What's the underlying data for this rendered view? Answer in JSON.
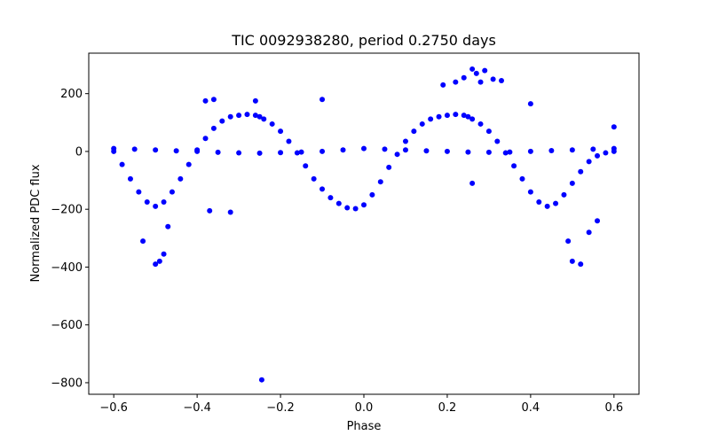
{
  "chart_data": {
    "type": "scatter",
    "title": "TIC 0092938280, period 0.2750 days",
    "xlabel": "Phase",
    "ylabel": "Normalized PDC flux",
    "xlim": [
      -0.66,
      0.66
    ],
    "ylim": [
      -840,
      340
    ],
    "x_ticks": [
      -0.6,
      -0.4,
      -0.2,
      0.0,
      0.2,
      0.4,
      0.6
    ],
    "x_tick_labels": [
      "−0.6",
      "−0.4",
      "−0.2",
      "0.0",
      "0.2",
      "0.4",
      "0.6"
    ],
    "y_ticks": [
      200,
      0,
      -200,
      -400,
      -600,
      -800
    ],
    "y_tick_labels": [
      "200",
      "0",
      "−200",
      "−400",
      "−600",
      "−800"
    ],
    "grid": false,
    "legend": "none",
    "marker_color": "#0000ff",
    "series": [
      {
        "x": [
          -0.6,
          -0.58,
          -0.56,
          -0.54,
          -0.52,
          -0.5,
          -0.48,
          -0.46,
          -0.44,
          -0.42,
          -0.4,
          -0.38,
          -0.36,
          -0.34,
          -0.32,
          -0.3,
          -0.28,
          -0.26,
          -0.25,
          -0.24,
          -0.22,
          -0.2,
          -0.18,
          -0.16,
          -0.14,
          -0.12,
          -0.1,
          -0.08,
          -0.06,
          -0.04,
          -0.02,
          0.0,
          0.02,
          0.04,
          0.06,
          0.08,
          0.1,
          0.12,
          0.14,
          0.16,
          0.18,
          0.2,
          0.22,
          0.24,
          0.25,
          0.26,
          0.28,
          0.3,
          0.32,
          0.34,
          0.36,
          0.38,
          0.4,
          0.42,
          0.44,
          0.46,
          0.48,
          0.5,
          0.52,
          0.54,
          0.56,
          0.58,
          0.6
        ],
        "y": [
          0,
          -45,
          -95,
          -140,
          -175,
          -190,
          -175,
          -140,
          -95,
          -45,
          5,
          45,
          80,
          105,
          120,
          125,
          128,
          125,
          120,
          112,
          95,
          70,
          35,
          -5,
          -50,
          -95,
          -130,
          -160,
          -180,
          -195,
          -198,
          -185,
          -150,
          -105,
          -55,
          -10,
          35,
          70,
          95,
          112,
          120,
          125,
          128,
          125,
          120,
          112,
          95,
          70,
          35,
          -5,
          -50,
          -95,
          -140,
          -175,
          -190,
          -180,
          -150,
          -110,
          -70,
          -35,
          -15,
          -5,
          0
        ]
      },
      {
        "x": [
          -0.6,
          -0.55,
          -0.5,
          -0.45,
          -0.4,
          -0.35,
          -0.3,
          -0.25,
          -0.2,
          -0.15,
          -0.1,
          -0.05,
          0.0,
          0.05,
          0.1,
          0.15,
          0.2,
          0.25,
          0.3,
          0.35,
          0.4,
          0.45,
          0.5,
          0.55,
          0.6
        ],
        "y": [
          10,
          8,
          5,
          2,
          0,
          -3,
          -5,
          -6,
          -4,
          -2,
          0,
          5,
          10,
          8,
          5,
          2,
          0,
          -2,
          -3,
          -2,
          0,
          3,
          5,
          8,
          10
        ]
      },
      {
        "x": [
          -0.5,
          -0.49,
          -0.48,
          -0.47,
          -0.53,
          -0.38,
          -0.37,
          -0.36,
          -0.32,
          -0.26,
          -0.245,
          -0.1,
          0.19,
          0.22,
          0.24,
          0.26,
          0.27,
          0.28,
          0.29,
          0.31,
          0.33,
          0.26,
          0.52,
          0.5,
          0.49,
          0.54,
          0.56,
          0.6,
          0.4
        ],
        "y": [
          -390,
          -380,
          -355,
          -260,
          -310,
          175,
          -205,
          180,
          -210,
          175,
          -790,
          180,
          230,
          240,
          255,
          285,
          270,
          240,
          280,
          250,
          245,
          -110,
          -390,
          -380,
          -310,
          -280,
          -240,
          85,
          165
        ]
      }
    ]
  }
}
